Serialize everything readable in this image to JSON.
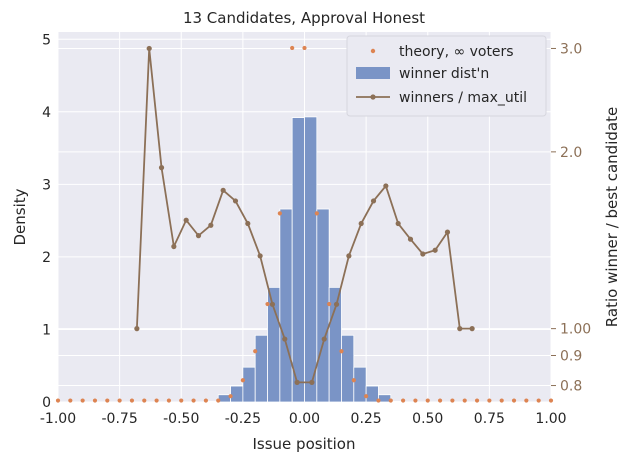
{
  "chart_data": {
    "type": "bar",
    "title": "13 Candidates, Approval Honest",
    "xlabel": "Issue position",
    "ylabel": "Density",
    "y2label": "Ratio winner / best candidate",
    "xlim": [
      -1.0,
      1.0
    ],
    "ylim": [
      0,
      5.1
    ],
    "xticks": [
      "-1.00",
      "-0.75",
      "-0.50",
      "-0.25",
      "0.00",
      "0.25",
      "0.50",
      "0.75",
      "1.00"
    ],
    "yticks": [
      "0",
      "1",
      "2",
      "3",
      "4",
      "5"
    ],
    "y2ticks": [
      "0.8",
      "0.9",
      "1.00",
      "2.0",
      "3.0"
    ],
    "y2scale": "log",
    "y2lim": [
      0.75,
      3.2
    ],
    "grid": true,
    "legend_position": "top-right",
    "legend": [
      "theory, ∞ voters",
      "winner dist'n",
      "winners / max_util"
    ],
    "colors": {
      "bars": "#7a94c6",
      "theory": "#dd8452",
      "line": "#8c7057",
      "background": "#eaeaf2",
      "grid": "#ffffff"
    },
    "series": [
      {
        "name": "winner dist'n",
        "type": "bar",
        "bin_width": 0.05,
        "x": [
          -0.375,
          -0.325,
          -0.275,
          -0.225,
          -0.175,
          -0.125,
          -0.075,
          -0.025,
          0.025,
          0.075,
          0.125,
          0.175,
          0.225,
          0.275,
          0.325,
          0.375
        ],
        "values": [
          0.01,
          0.1,
          0.22,
          0.48,
          0.92,
          1.58,
          2.66,
          3.92,
          3.93,
          2.66,
          1.58,
          0.92,
          0.48,
          0.22,
          0.1,
          0.01
        ]
      },
      {
        "name": "theory, ∞ voters",
        "type": "scatter",
        "x": [
          -1.0,
          -0.95,
          -0.9,
          -0.85,
          -0.8,
          -0.75,
          -0.7,
          -0.65,
          -0.6,
          -0.55,
          -0.5,
          -0.45,
          -0.4,
          -0.35,
          -0.3,
          -0.25,
          -0.2,
          -0.15,
          -0.1,
          -0.05,
          0.0,
          0.05,
          0.1,
          0.15,
          0.2,
          0.25,
          0.3,
          0.35,
          0.4,
          0.45,
          0.5,
          0.55,
          0.6,
          0.65,
          0.7,
          0.75,
          0.8,
          0.85,
          0.9,
          0.95,
          1.0
        ],
        "values": [
          0,
          0,
          0,
          0,
          0,
          0,
          0,
          0,
          0,
          0,
          0,
          0,
          0,
          0.02,
          0.08,
          0.3,
          0.7,
          1.35,
          2.6,
          4.88,
          4.88,
          2.6,
          1.35,
          0.7,
          0.3,
          0.08,
          0.02,
          0,
          0,
          0,
          0,
          0,
          0,
          0,
          0,
          0,
          0,
          0,
          0,
          0,
          0
        ]
      },
      {
        "name": "winners / max_util",
        "type": "line",
        "axis": "right",
        "x": [
          -0.68,
          -0.63,
          -0.58,
          -0.53,
          -0.48,
          -0.43,
          -0.38,
          -0.33,
          -0.28,
          -0.23,
          -0.18,
          -0.13,
          -0.08,
          -0.03,
          0.03,
          0.08,
          0.13,
          0.18,
          0.23,
          0.28,
          0.33,
          0.38,
          0.43,
          0.48,
          0.53,
          0.58,
          0.63,
          0.68
        ],
        "values": [
          1.0,
          3.0,
          1.88,
          1.38,
          1.53,
          1.44,
          1.5,
          1.72,
          1.65,
          1.51,
          1.33,
          1.1,
          0.96,
          0.81,
          0.81,
          0.96,
          1.1,
          1.33,
          1.51,
          1.65,
          1.75,
          1.51,
          1.42,
          1.34,
          1.36,
          1.46,
          1.0,
          1.0
        ]
      }
    ]
  }
}
